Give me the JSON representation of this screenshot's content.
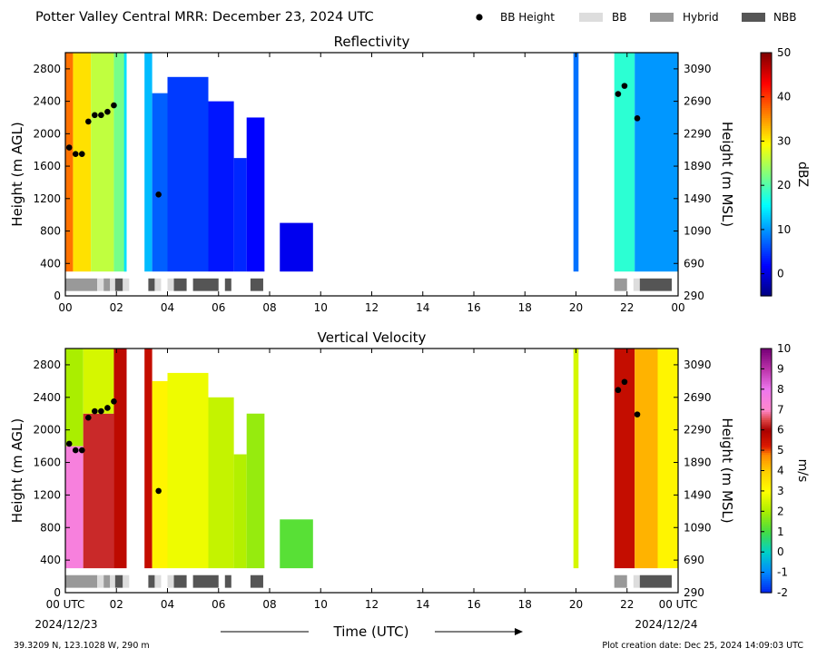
{
  "header": {
    "title": "Potter Valley Central MRR:  December 23, 2024 UTC"
  },
  "legend": {
    "items": [
      {
        "label": "BB Height",
        "color": "#000000",
        "kind": "dot"
      },
      {
        "label": "BB",
        "color": "#dddddd",
        "kind": "bar"
      },
      {
        "label": "Hybrid",
        "color": "#999999",
        "kind": "bar"
      },
      {
        "label": "NBB",
        "color": "#555555",
        "kind": "bar"
      }
    ]
  },
  "footer": {
    "xlabel": "Time (UTC)",
    "location": "39.3209 N, 123.1028 W, 290 m",
    "creation": "Plot creation date: Dec 25, 2024 14:09:03 UTC",
    "start_date": "2024/12/23",
    "end_date": "2024/12/24"
  },
  "chart_data": [
    {
      "type": "heatmap",
      "title": "Reflectivity",
      "ylabel": "Height (m AGL)",
      "ylabel_right": "Height (m MSL)",
      "xlim": [
        0,
        24
      ],
      "ylim": [
        0,
        3000
      ],
      "x_ticks": [
        "00",
        "02",
        "04",
        "06",
        "08",
        "10",
        "12",
        "14",
        "16",
        "18",
        "20",
        "22",
        "00"
      ],
      "y_ticks": [
        "0",
        "400",
        "800",
        "1200",
        "1600",
        "2000",
        "2400",
        "2800"
      ],
      "y_ticks_right": [
        "290",
        "690",
        "1090",
        "1490",
        "1890",
        "2290",
        "2690",
        "3090"
      ],
      "colorbar": {
        "label": "dBZ",
        "min": -5,
        "max": 50,
        "ticks": [
          "0",
          "10",
          "20",
          "30",
          "40",
          "50"
        ],
        "tick_values": [
          0,
          10,
          20,
          30,
          40,
          50
        ],
        "colormap": "jet"
      },
      "data_regions": [
        {
          "t0": 0.0,
          "t1": 0.3,
          "top": 3000,
          "value": 37
        },
        {
          "t0": 0.3,
          "t1": 1.0,
          "top": 3000,
          "value": 31
        },
        {
          "t0": 1.0,
          "t1": 1.9,
          "top": 3000,
          "value": 26
        },
        {
          "t0": 1.9,
          "t1": 2.4,
          "top": 3000,
          "value": 22
        },
        {
          "t0": 2.3,
          "t1": 2.4,
          "top": 3000,
          "value": 14
        },
        {
          "t0": 3.1,
          "t1": 3.4,
          "top": 3000,
          "value": 12
        },
        {
          "t0": 3.4,
          "t1": 4.0,
          "top": 2500,
          "value": 7
        },
        {
          "t0": 4.0,
          "t1": 5.6,
          "top": 2700,
          "value": 5
        },
        {
          "t0": 5.6,
          "t1": 6.6,
          "top": 2400,
          "value": 3
        },
        {
          "t0": 6.6,
          "t1": 7.1,
          "top": 1700,
          "value": 4
        },
        {
          "t0": 7.1,
          "t1": 7.8,
          "top": 2200,
          "value": 2
        },
        {
          "t0": 8.4,
          "t1": 9.7,
          "top": 900,
          "value": 1
        },
        {
          "t0": 19.9,
          "t1": 20.1,
          "top": 3000,
          "value": 8
        },
        {
          "t0": 21.5,
          "t1": 22.3,
          "top": 3000,
          "value": 18
        },
        {
          "t0": 22.3,
          "t1": 24.0,
          "top": 3000,
          "value": 10
        }
      ],
      "bright_band_height_m": [
        {
          "t": 0.15,
          "h": 1830
        },
        {
          "t": 0.4,
          "h": 1750
        },
        {
          "t": 0.65,
          "h": 1750
        },
        {
          "t": 0.9,
          "h": 2150
        },
        {
          "t": 1.15,
          "h": 2230
        },
        {
          "t": 1.4,
          "h": 2230
        },
        {
          "t": 1.65,
          "h": 2270
        },
        {
          "t": 1.9,
          "h": 2350
        },
        {
          "t": 3.65,
          "h": 1250
        },
        {
          "t": 21.65,
          "h": 2490
        },
        {
          "t": 21.9,
          "h": 2590
        },
        {
          "t": 22.4,
          "h": 2190
        }
      ],
      "band_type_segments": [
        {
          "t0": 0.0,
          "t1": 1.25,
          "type": "Hybrid"
        },
        {
          "t0": 1.25,
          "t1": 1.5,
          "type": "BB"
        },
        {
          "t0": 1.5,
          "t1": 1.75,
          "type": "Hybrid"
        },
        {
          "t0": 1.75,
          "t1": 1.95,
          "type": "BB"
        },
        {
          "t0": 1.95,
          "t1": 2.25,
          "type": "NBB"
        },
        {
          "t0": 2.25,
          "t1": 2.5,
          "type": "BB"
        },
        {
          "t0": 3.25,
          "t1": 3.5,
          "type": "NBB"
        },
        {
          "t0": 3.5,
          "t1": 3.75,
          "type": "BB"
        },
        {
          "t0": 4.0,
          "t1": 4.25,
          "type": "BB"
        },
        {
          "t0": 4.25,
          "t1": 4.75,
          "type": "NBB"
        },
        {
          "t0": 5.0,
          "t1": 6.0,
          "type": "NBB"
        },
        {
          "t0": 6.25,
          "t1": 6.5,
          "type": "NBB"
        },
        {
          "t0": 7.25,
          "t1": 7.75,
          "type": "NBB"
        },
        {
          "t0": 21.5,
          "t1": 22.0,
          "type": "Hybrid"
        },
        {
          "t0": 22.25,
          "t1": 22.5,
          "type": "BB"
        },
        {
          "t0": 22.5,
          "t1": 23.75,
          "type": "NBB"
        }
      ]
    },
    {
      "type": "heatmap",
      "title": "Vertical Velocity",
      "ylabel": "Height (m AGL)",
      "ylabel_right": "Height (m MSL)",
      "xlim": [
        0,
        24
      ],
      "ylim": [
        0,
        3000
      ],
      "x_ticks": [
        "00 UTC",
        "02",
        "04",
        "06",
        "08",
        "10",
        "12",
        "14",
        "16",
        "18",
        "20",
        "22",
        "00 UTC"
      ],
      "y_ticks": [
        "0",
        "400",
        "800",
        "1200",
        "1600",
        "2000",
        "2400",
        "2800"
      ],
      "y_ticks_right": [
        "290",
        "690",
        "1090",
        "1490",
        "1890",
        "2290",
        "2690",
        "3090"
      ],
      "colorbar": {
        "label": "m/s",
        "min": -2,
        "max": 10,
        "ticks": [
          "-2",
          "-1",
          "0",
          "1",
          "2",
          "3",
          "4",
          "5",
          "6",
          "7",
          "8",
          "9",
          "10"
        ],
        "tick_values": [
          -2,
          -1,
          0,
          1,
          2,
          3,
          4,
          5,
          6,
          7,
          8,
          9,
          10
        ],
        "colormap": "velocity",
        "color_stops": [
          {
            "v": -2,
            "c": "#0022ee"
          },
          {
            "v": -1,
            "c": "#0088ff"
          },
          {
            "v": 0,
            "c": "#00d0c8"
          },
          {
            "v": 1,
            "c": "#44dd44"
          },
          {
            "v": 2,
            "c": "#aaee00"
          },
          {
            "v": 3,
            "c": "#ffff00"
          },
          {
            "v": 4,
            "c": "#ffcc00"
          },
          {
            "v": 4.8,
            "c": "#ff8800"
          },
          {
            "v": 5.2,
            "c": "#dd1a00"
          },
          {
            "v": 6,
            "c": "#aa0000"
          },
          {
            "v": 6.5,
            "c": "#dd4444"
          },
          {
            "v": 7,
            "c": "#ff88cc"
          },
          {
            "v": 8,
            "c": "#ee77ee"
          },
          {
            "v": 9,
            "c": "#bb33aa"
          },
          {
            "v": 10,
            "c": "#770077"
          }
        ]
      },
      "data_regions": [
        {
          "t0": 0.0,
          "t1": 0.7,
          "top": 1800,
          "value": 7.5
        },
        {
          "t0": 0.0,
          "t1": 0.7,
          "bottom": 1800,
          "top": 3000,
          "value": 2
        },
        {
          "t0": 0.7,
          "t1": 1.9,
          "top": 2200,
          "value": 6.3
        },
        {
          "t0": 0.7,
          "t1": 1.9,
          "bottom": 2200,
          "top": 3000,
          "value": 2.5
        },
        {
          "t0": 1.9,
          "t1": 2.4,
          "top": 3000,
          "value": 5.7
        },
        {
          "t0": 3.1,
          "t1": 3.4,
          "top": 3000,
          "value": 5.6
        },
        {
          "t0": 3.4,
          "t1": 4.0,
          "top": 2600,
          "value": 3.2
        },
        {
          "t0": 4.0,
          "t1": 5.6,
          "top": 2700,
          "value": 2.8
        },
        {
          "t0": 5.6,
          "t1": 6.6,
          "top": 2400,
          "value": 2.3
        },
        {
          "t0": 6.6,
          "t1": 7.1,
          "top": 1700,
          "value": 2.1
        },
        {
          "t0": 7.1,
          "t1": 7.8,
          "top": 2200,
          "value": 1.8
        },
        {
          "t0": 8.4,
          "t1": 9.7,
          "top": 900,
          "value": 1.2
        },
        {
          "t0": 19.9,
          "t1": 20.1,
          "top": 3000,
          "value": 2.5
        },
        {
          "t0": 21.5,
          "t1": 22.3,
          "top": 3000,
          "value": 5.6
        },
        {
          "t0": 22.3,
          "t1": 23.2,
          "top": 3000,
          "value": 4.3
        },
        {
          "t0": 23.2,
          "t1": 24.0,
          "top": 3000,
          "value": 3.2
        }
      ],
      "bright_band_height_m": [
        {
          "t": 0.15,
          "h": 1830
        },
        {
          "t": 0.4,
          "h": 1750
        },
        {
          "t": 0.65,
          "h": 1750
        },
        {
          "t": 0.9,
          "h": 2150
        },
        {
          "t": 1.15,
          "h": 2230
        },
        {
          "t": 1.4,
          "h": 2230
        },
        {
          "t": 1.65,
          "h": 2270
        },
        {
          "t": 1.9,
          "h": 2350
        },
        {
          "t": 3.65,
          "h": 1250
        },
        {
          "t": 21.65,
          "h": 2490
        },
        {
          "t": 21.9,
          "h": 2590
        },
        {
          "t": 22.4,
          "h": 2190
        }
      ],
      "band_type_segments": [
        {
          "t0": 0.0,
          "t1": 1.25,
          "type": "Hybrid"
        },
        {
          "t0": 1.25,
          "t1": 1.5,
          "type": "BB"
        },
        {
          "t0": 1.5,
          "t1": 1.75,
          "type": "Hybrid"
        },
        {
          "t0": 1.75,
          "t1": 1.95,
          "type": "BB"
        },
        {
          "t0": 1.95,
          "t1": 2.25,
          "type": "NBB"
        },
        {
          "t0": 2.25,
          "t1": 2.5,
          "type": "BB"
        },
        {
          "t0": 3.25,
          "t1": 3.5,
          "type": "NBB"
        },
        {
          "t0": 3.5,
          "t1": 3.75,
          "type": "BB"
        },
        {
          "t0": 4.0,
          "t1": 4.25,
          "type": "BB"
        },
        {
          "t0": 4.25,
          "t1": 4.75,
          "type": "NBB"
        },
        {
          "t0": 5.0,
          "t1": 6.0,
          "type": "NBB"
        },
        {
          "t0": 6.25,
          "t1": 6.5,
          "type": "NBB"
        },
        {
          "t0": 7.25,
          "t1": 7.75,
          "type": "NBB"
        },
        {
          "t0": 21.5,
          "t1": 22.0,
          "type": "Hybrid"
        },
        {
          "t0": 22.25,
          "t1": 22.5,
          "type": "BB"
        },
        {
          "t0": 22.5,
          "t1": 23.75,
          "type": "NBB"
        }
      ]
    }
  ]
}
